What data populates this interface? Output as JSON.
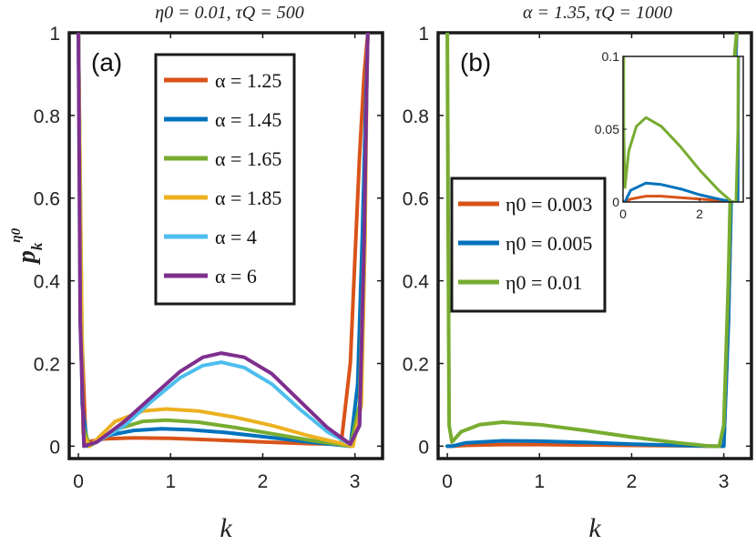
{
  "chart_data": [
    {
      "type": "line",
      "panel_label": "(a)",
      "title": "η0 = 0.01, τQ = 500",
      "xlabel": "k",
      "ylabel": "p_k^η0",
      "xlim": [
        -0.1,
        3.3
      ],
      "ylim": [
        -0.03,
        1.0
      ],
      "xticks": [
        0,
        1,
        2,
        3
      ],
      "yticks": [
        0,
        0.2,
        0.4,
        0.6,
        0.8,
        1
      ],
      "ytick_labels": [
        "0",
        "0.2",
        "0.4",
        "0.6",
        "0.8",
        "1"
      ],
      "legend_location": "top-center",
      "series": [
        {
          "name": "α = 1.25",
          "color": "#D95319",
          "x": [
            0,
            0.03,
            0.08,
            0.3,
            0.6,
            1.0,
            1.5,
            2.0,
            2.5,
            2.85,
            2.95,
            3.0,
            3.05,
            3.1,
            3.14
          ],
          "y": [
            1.0,
            0.3,
            0.01,
            0.018,
            0.02,
            0.019,
            0.015,
            0.01,
            0.006,
            0.005,
            0.2,
            0.45,
            0.7,
            0.9,
            1.0
          ]
        },
        {
          "name": "α = 1.45",
          "color": "#0072BD",
          "x": [
            0,
            0.04,
            0.1,
            0.3,
            0.6,
            0.9,
            1.2,
            1.6,
            2.0,
            2.5,
            2.95,
            3.03,
            3.08,
            3.12,
            3.14
          ],
          "y": [
            1.0,
            0.1,
            0.0,
            0.025,
            0.038,
            0.042,
            0.04,
            0.033,
            0.023,
            0.01,
            0.0,
            0.15,
            0.5,
            0.85,
            1.0
          ]
        },
        {
          "name": "α = 1.65",
          "color": "#77AC30",
          "x": [
            0,
            0.05,
            0.12,
            0.4,
            0.7,
            0.95,
            1.3,
            1.7,
            2.1,
            2.5,
            2.95,
            3.05,
            3.1,
            3.13,
            3.14
          ],
          "y": [
            1.0,
            0.05,
            0.0,
            0.04,
            0.06,
            0.063,
            0.058,
            0.045,
            0.03,
            0.015,
            0.0,
            0.1,
            0.5,
            0.9,
            1.0
          ]
        },
        {
          "name": "α = 1.85",
          "color": "#EDB120",
          "x": [
            0,
            0.05,
            0.12,
            0.4,
            0.7,
            0.95,
            1.3,
            1.7,
            2.1,
            2.5,
            2.98,
            3.07,
            3.11,
            3.13,
            3.14
          ],
          "y": [
            1.0,
            0.03,
            0.0,
            0.06,
            0.085,
            0.09,
            0.085,
            0.07,
            0.05,
            0.025,
            0.0,
            0.1,
            0.5,
            0.9,
            1.0
          ]
        },
        {
          "name": "α = 4",
          "color": "#4DBEEE",
          "x": [
            0,
            0.02,
            0.06,
            0.2,
            0.5,
            0.8,
            1.1,
            1.35,
            1.55,
            1.8,
            2.1,
            2.4,
            2.7,
            2.95,
            3.05,
            3.1,
            3.13,
            3.14
          ],
          "y": [
            1.0,
            0.3,
            0.0,
            0.01,
            0.05,
            0.11,
            0.165,
            0.195,
            0.203,
            0.19,
            0.15,
            0.09,
            0.035,
            0.005,
            0.05,
            0.5,
            0.9,
            1.0
          ]
        },
        {
          "name": "α = 6",
          "color": "#7E2F8E",
          "x": [
            0,
            0.02,
            0.06,
            0.2,
            0.5,
            0.8,
            1.1,
            1.35,
            1.55,
            1.8,
            2.1,
            2.4,
            2.7,
            2.95,
            3.05,
            3.1,
            3.13,
            3.14
          ],
          "y": [
            1.0,
            0.3,
            0.0,
            0.01,
            0.06,
            0.12,
            0.18,
            0.215,
            0.225,
            0.215,
            0.175,
            0.11,
            0.045,
            0.005,
            0.05,
            0.5,
            0.9,
            1.0
          ]
        }
      ]
    },
    {
      "type": "line",
      "panel_label": "(b)",
      "title": "α = 1.35, τQ = 1000",
      "xlabel": "k",
      "ylabel": "",
      "xlim": [
        -0.1,
        3.3
      ],
      "ylim": [
        -0.03,
        1.0
      ],
      "xticks": [
        0,
        1,
        2,
        3
      ],
      "yticks": [
        0,
        0.2,
        0.4,
        0.6,
        0.8,
        1
      ],
      "legend_location": "middle-left",
      "series": [
        {
          "name": "η0 = 0.003",
          "color": "#D95319",
          "x": [
            0,
            0.05,
            0.2,
            0.6,
            1.0,
            1.5,
            2.0,
            2.5,
            2.9,
            3.0,
            3.05,
            3.1,
            3.14
          ],
          "y": [
            0.0,
            0.0,
            0.002,
            0.004,
            0.004,
            0.003,
            0.002,
            0.001,
            0.0,
            0.0,
            0.3,
            0.8,
            1.0
          ]
        },
        {
          "name": "η0 = 0.005",
          "color": "#0072BD",
          "x": [
            0,
            0.05,
            0.2,
            0.6,
            1.0,
            1.5,
            2.0,
            2.5,
            2.9,
            3.0,
            3.05,
            3.1,
            3.14
          ],
          "y": [
            0.0,
            0.0,
            0.008,
            0.013,
            0.012,
            0.009,
            0.005,
            0.002,
            0.0,
            0.0,
            0.3,
            0.8,
            1.0
          ]
        },
        {
          "name": "η0 = 0.01",
          "color": "#77AC30",
          "x": [
            0,
            0.01,
            0.02,
            0.05,
            0.15,
            0.35,
            0.6,
            1.0,
            1.5,
            2.0,
            2.5,
            2.85,
            2.95,
            3.0,
            3.05,
            3.1,
            3.14
          ],
          "y": [
            1.0,
            0.5,
            0.05,
            0.01,
            0.035,
            0.052,
            0.058,
            0.052,
            0.038,
            0.022,
            0.008,
            0.0,
            0.0,
            0.05,
            0.4,
            0.9,
            1.0
          ]
        }
      ],
      "inset": {
        "xlim": [
          0,
          3.14
        ],
        "ylim": [
          0,
          0.1
        ],
        "xticks": [
          0,
          2
        ],
        "yticks": [
          0,
          0.05,
          0.1
        ],
        "ytick_labels": [
          "0",
          "0.05",
          "0.1"
        ]
      }
    }
  ]
}
